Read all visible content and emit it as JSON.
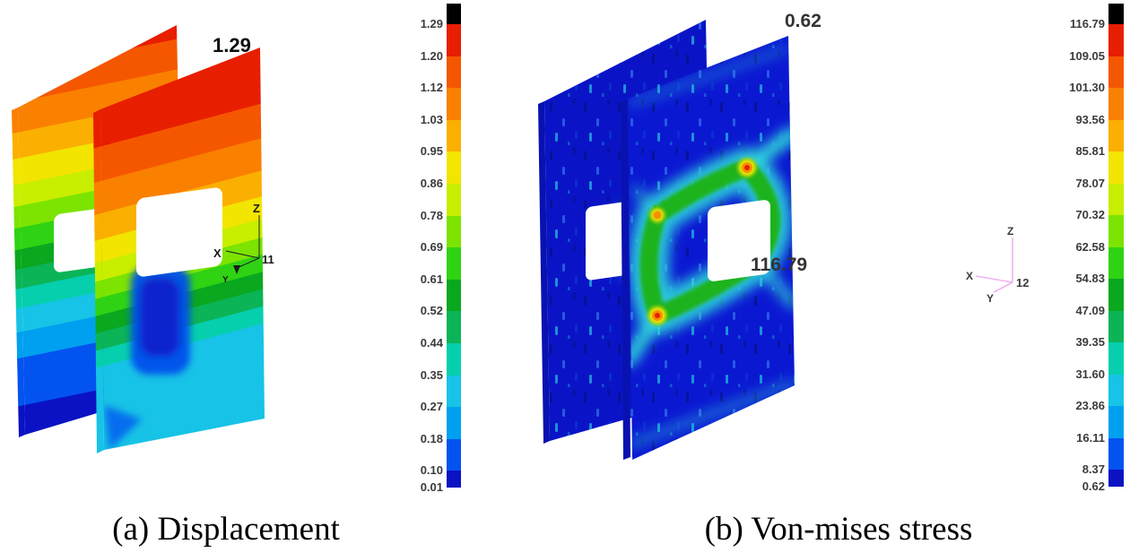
{
  "figure": {
    "colors": {
      "scale_cap": "#000000",
      "scale": [
        "#e81e00",
        "#f55700",
        "#fa8000",
        "#fbaf00",
        "#f2e500",
        "#c8ee00",
        "#7ce400",
        "#2fd313",
        "#0aa81e",
        "#0bb457",
        "#06cfae",
        "#17c3e6",
        "#00a0f0",
        "#0353f0",
        "#0a12c4"
      ],
      "stress_plate_front": "#0b18d2",
      "stress_plate_back": "#0a14c6",
      "stress_plate_edge": "#0912b0",
      "ring_cyan": "#2fd6da",
      "ring_green": "#1db31c",
      "hotspot_yellow": "#f5e400",
      "hotspot_orange": "#f59000",
      "hotspot_red": "#e82000",
      "triad_pink": "#f0b2ee"
    },
    "panels": [
      {
        "caption": "(a) Displacement",
        "max_label": "1.29",
        "triad": {
          "x": "X",
          "y": "Y",
          "z": "Z",
          "num": "11"
        },
        "colorbar_values": [
          "1.29",
          "1.20",
          "1.12",
          "1.03",
          "0.95",
          "0.86",
          "0.78",
          "0.69",
          "0.61",
          "0.52",
          "0.44",
          "0.35",
          "0.27",
          "0.18",
          "0.10",
          "0.01"
        ]
      },
      {
        "caption": "(b) Von-mises stress",
        "max_label": "116.79",
        "min_label": "0.62",
        "triad": {
          "x": "X",
          "y": "Y",
          "z": "Z",
          "num": "12"
        },
        "colorbar_values": [
          "116.79",
          "109.05",
          "101.30",
          "93.56",
          "85.81",
          "78.07",
          "70.32",
          "62.58",
          "54.83",
          "47.09",
          "39.35",
          "31.60",
          "23.86",
          "16.11",
          "8.37",
          "0.62"
        ]
      }
    ]
  },
  "chart_data": [
    {
      "type": "heatmap",
      "title": "(a) Displacement",
      "description_visible": "Two parallel square plates with central holes, rainbow displacement contours (max at top, min at bottom)",
      "colorbar_values": [
        1.29,
        1.2,
        1.12,
        1.03,
        0.95,
        0.86,
        0.78,
        0.69,
        0.61,
        0.52,
        0.44,
        0.35,
        0.27,
        0.18,
        0.1,
        0.01
      ],
      "scale_range": [
        0.01,
        1.29
      ],
      "annotations": [
        "1.29"
      ],
      "legend_position": "right"
    },
    {
      "type": "heatmap",
      "title": "(b) Von-mises stress",
      "description_visible": "Two parallel square plates with central holes, mostly low (blue) stress with concentration ring around front hole",
      "colorbar_values": [
        116.79,
        109.05,
        101.3,
        93.56,
        85.81,
        78.07,
        70.32,
        62.58,
        54.83,
        47.09,
        39.35,
        31.6,
        23.86,
        16.11,
        8.37,
        0.62
      ],
      "scale_range": [
        0.62,
        116.79
      ],
      "annotations": [
        "0.62",
        "116.79"
      ],
      "legend_position": "right"
    }
  ]
}
